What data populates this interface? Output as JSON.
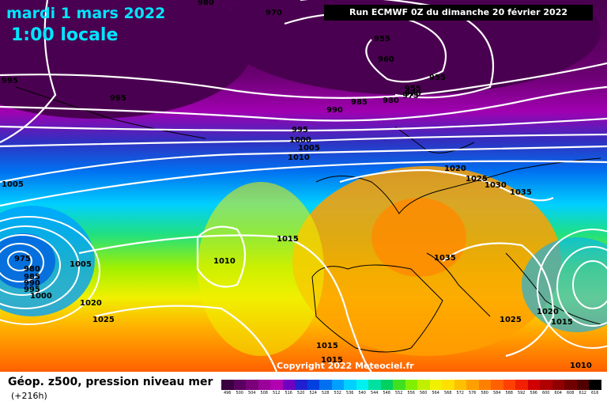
{
  "header": {
    "date": "mardi 1 mars 2022",
    "time": "1:00 locale",
    "run": "Run ECMWF 0Z du dimanche 20 février 2022"
  },
  "copyright": "Copyright 2022 Meteociel.fr",
  "footer": {
    "title": "Géop. z500, pression niveau mer",
    "subtitle": "(+216h)"
  },
  "isobar_labels": [
    "980",
    "970",
    "955",
    "960",
    "955",
    "955",
    "970",
    "975",
    "985",
    "980",
    "990",
    "995",
    "1000",
    "1005",
    "1010",
    "995",
    "995",
    "1005",
    "1020",
    "1025",
    "1030",
    "1035",
    "1015",
    "1010",
    "975",
    "980",
    "985",
    "990",
    "995",
    "1000",
    "1005",
    "1020",
    "1025",
    "1035",
    "1025",
    "1020",
    "1015",
    "1015",
    "1015",
    "1010"
  ],
  "legend_values": [
    "496",
    "500",
    "504",
    "508",
    "512",
    "516",
    "520",
    "524",
    "528",
    "532",
    "536",
    "540",
    "544",
    "548",
    "552",
    "556",
    "560",
    "564",
    "568",
    "572",
    "576",
    "580",
    "584",
    "588",
    "592",
    "596",
    "600",
    "604",
    "608",
    "612",
    "616"
  ],
  "legend_colors": [
    "#3a0040",
    "#5a0060",
    "#7a007a",
    "#9a009a",
    "#b000b0",
    "#7000c0",
    "#2020d0",
    "#0040e0",
    "#0070f0",
    "#00a0ff",
    "#00d0ff",
    "#00f0f0",
    "#00e0a0",
    "#00d060",
    "#40e020",
    "#80f000",
    "#c0f000",
    "#f0f000",
    "#ffe000",
    "#ffc000",
    "#ffa000",
    "#ff8000",
    "#ff6000",
    "#ff4000",
    "#f02000",
    "#d00000",
    "#b00000",
    "#900000",
    "#700000",
    "#500000",
    "#000000"
  ]
}
